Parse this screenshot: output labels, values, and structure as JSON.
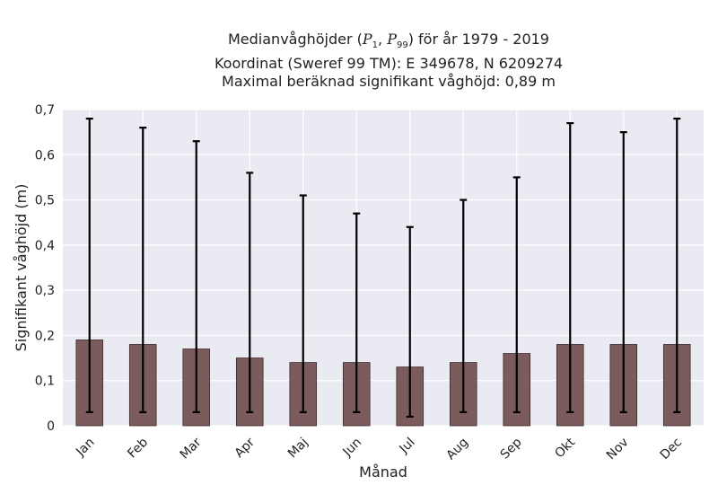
{
  "chart_data": {
    "type": "bar",
    "title": {
      "prefix": "Medianvåghöjder (",
      "p1": "P",
      "p1_sub": "1",
      "sep": ", ",
      "p2": "P",
      "p2_sub": "99",
      "suffix": ") för år 1979 - 2019"
    },
    "subtitle1": "Koordinat (Sweref 99 TM): E 349678, N 6209274",
    "subtitle2": "Maximal beräknad signifikant våghöjd: 0,89 m",
    "xlabel": "Månad",
    "ylabel": "Signifikant våghöjd (m)",
    "ylim": [
      0,
      0.7
    ],
    "yticks": [
      0,
      0.1,
      0.2,
      0.3,
      0.4,
      0.5,
      0.6,
      0.7
    ],
    "ytick_labels": [
      "0",
      "0,1",
      "0,2",
      "0,3",
      "0,4",
      "0,5",
      "0,6",
      "0,7"
    ],
    "categories": [
      "Jan",
      "Feb",
      "Mar",
      "Apr",
      "Maj",
      "Jun",
      "Jul",
      "Aug",
      "Sep",
      "Okt",
      "Nov",
      "Dec"
    ],
    "values": [
      0.19,
      0.18,
      0.17,
      0.15,
      0.14,
      0.14,
      0.13,
      0.14,
      0.16,
      0.18,
      0.18,
      0.18
    ],
    "p1": [
      0.03,
      0.03,
      0.03,
      0.03,
      0.03,
      0.03,
      0.02,
      0.03,
      0.03,
      0.03,
      0.03,
      0.03
    ],
    "p99": [
      0.68,
      0.66,
      0.63,
      0.56,
      0.51,
      0.47,
      0.44,
      0.5,
      0.55,
      0.67,
      0.65,
      0.68
    ],
    "grid": true,
    "legend": "none",
    "bar_color": "#7b5b5b",
    "bar_edge_color": "#3a2a2a",
    "error_bar_color": "#000000",
    "plot_background": "#eaeaf2",
    "grid_color": "#ffffff"
  }
}
